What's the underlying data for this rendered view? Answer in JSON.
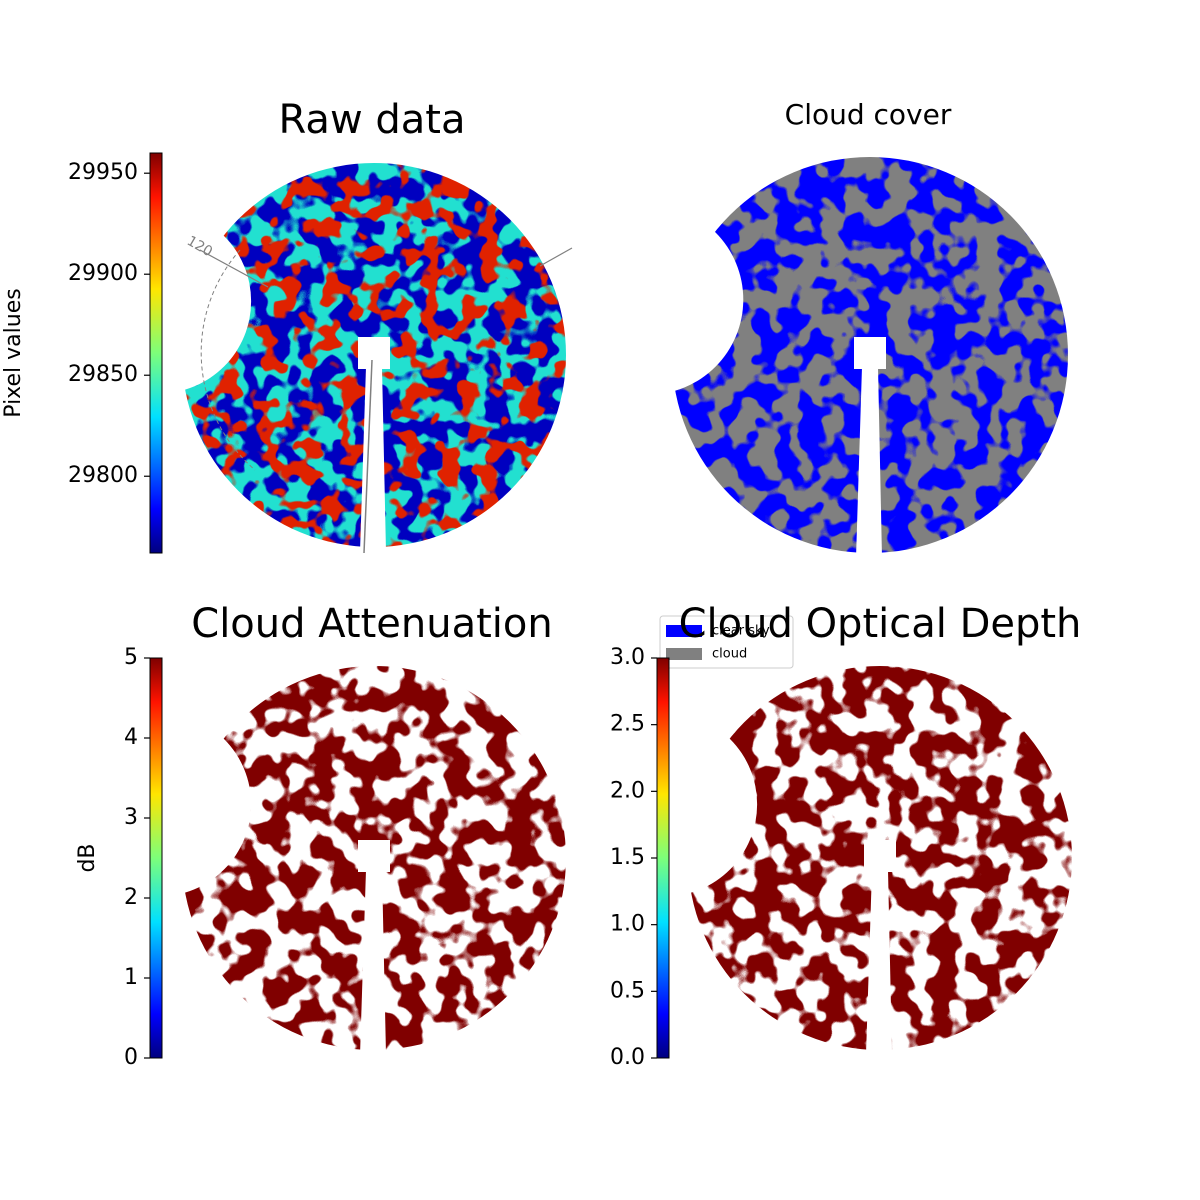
{
  "chart_data": [
    {
      "type": "image",
      "title": "Raw data",
      "colorbar_label": "Pixel values",
      "colormap": "jet",
      "ylim": [
        29762,
        29960
      ],
      "yticks": [
        29800,
        29850,
        29900,
        29950
      ],
      "annotations": [
        "120"
      ]
    },
    {
      "type": "image",
      "title": "Cloud cover",
      "series": [
        {
          "name": "clear sky",
          "color": "#0000ff"
        },
        {
          "name": "cloud",
          "color": "#808080"
        }
      ]
    },
    {
      "type": "image",
      "title": "Cloud Attenuation",
      "colorbar_label": "dB",
      "colormap": "jet",
      "ylim": [
        0,
        5
      ],
      "yticks": [
        0,
        1,
        2,
        3,
        4,
        5
      ]
    },
    {
      "type": "image",
      "title": "Cloud Optical Depth",
      "colormap": "jet",
      "ylim": [
        0,
        3
      ],
      "yticks": [
        {
          "value": 0,
          "label": "0.0"
        },
        {
          "value": 0.5,
          "label": "0.5"
        },
        {
          "value": 1,
          "label": "1.0"
        },
        {
          "value": 1.5,
          "label": "1.5"
        },
        {
          "value": 2,
          "label": "2.0"
        },
        {
          "value": 2.5,
          "label": "2.5"
        },
        {
          "value": 3,
          "label": "3.0"
        }
      ]
    }
  ]
}
